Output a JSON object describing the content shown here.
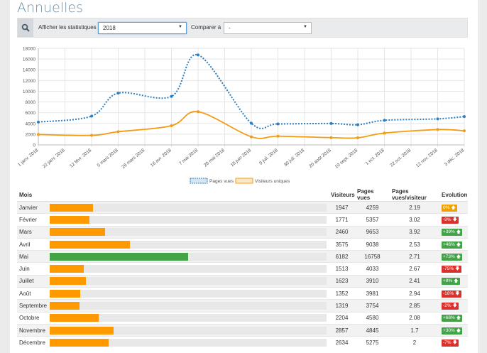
{
  "page": {
    "title": "Annuelles"
  },
  "filters": {
    "show_label": "Afficher les statistiques",
    "year_value": "2018",
    "compare_label": "Comparer à",
    "compare_value": "-",
    "search_icon": "search-icon"
  },
  "chart_data": {
    "type": "line",
    "x": [
      "1 janv. 2018",
      "22 janv. 2018",
      "12 févr. 2018",
      "5 mars 2018",
      "26 mars 2018",
      "16 avr. 2018",
      "7 mai 2018",
      "28 mai 2018",
      "18 juin 2018",
      "9 juil. 2018",
      "30 juil. 2018",
      "20 août 2018",
      "10 sept. 2018",
      "1 oct. 2018",
      "22 oct. 2018",
      "12 nov. 2018",
      "3 déc. 2018"
    ],
    "ylim": [
      0,
      18000
    ],
    "yticks": [
      "0",
      "2000",
      "4000",
      "6000",
      "8000",
      "10000",
      "12000",
      "14000",
      "16000",
      "18000"
    ],
    "series": [
      {
        "name": "Pages vues",
        "color": "#2f7ebd",
        "style": "dotted",
        "x": [
          "1 janv. 2018",
          "12 févr. 2018",
          "5 mars 2018",
          "16 avr. 2018",
          "7 mai 2018",
          "18 juin 2018",
          "9 juil. 2018",
          "20 août 2018",
          "10 sept. 2018",
          "1 oct. 2018",
          "12 nov. 2018",
          "3 déc. 2018"
        ],
        "values": [
          4259,
          5357,
          9653,
          9038,
          16758,
          4033,
          3910,
          3981,
          3754,
          4580,
          4845,
          5275
        ]
      },
      {
        "name": "Visiteurs uniques",
        "color": "#f39c12",
        "style": "solid",
        "x": [
          "1 janv. 2018",
          "12 févr. 2018",
          "5 mars 2018",
          "16 avr. 2018",
          "7 mai 2018",
          "18 juin 2018",
          "9 juil. 2018",
          "20 août 2018",
          "10 sept. 2018",
          "1 oct. 2018",
          "12 nov. 2018",
          "3 déc. 2018"
        ],
        "values": [
          1947,
          1771,
          2460,
          3575,
          6182,
          1513,
          1623,
          1352,
          1319,
          2204,
          2857,
          2634
        ]
      }
    ],
    "grid": true,
    "legend_position": "bottom"
  },
  "table": {
    "headers": {
      "month": "Mois",
      "visitors": "Visiteurs",
      "pages": "Pages vues",
      "ratio": "Pages vues/visiteur",
      "evolution": "Evolution"
    },
    "max_visitors": 6182,
    "rows": [
      {
        "month": "Janvier",
        "visitors": "1947",
        "pages": "4259",
        "ratio": "2.19",
        "evolution": "0%",
        "trend": "up",
        "color": "orange"
      },
      {
        "month": "Février",
        "visitors": "1771",
        "pages": "5357",
        "ratio": "3.02",
        "evolution": "-9%",
        "trend": "down",
        "color": "red"
      },
      {
        "month": "Mars",
        "visitors": "2460",
        "pages": "9653",
        "ratio": "3.92",
        "evolution": "+39%",
        "trend": "up",
        "color": "green"
      },
      {
        "month": "Avril",
        "visitors": "3575",
        "pages": "9038",
        "ratio": "2.53",
        "evolution": "+46%",
        "trend": "up",
        "color": "green"
      },
      {
        "month": "Mai",
        "visitors": "6182",
        "pages": "16758",
        "ratio": "2.71",
        "evolution": "+73%",
        "trend": "up",
        "color": "green"
      },
      {
        "month": "Juin",
        "visitors": "1513",
        "pages": "4033",
        "ratio": "2.67",
        "evolution": "-75%",
        "trend": "down",
        "color": "red"
      },
      {
        "month": "Juillet",
        "visitors": "1623",
        "pages": "3910",
        "ratio": "2.41",
        "evolution": "+8%",
        "trend": "up",
        "color": "green"
      },
      {
        "month": "Août",
        "visitors": "1352",
        "pages": "3981",
        "ratio": "2.94",
        "evolution": "-16%",
        "trend": "down",
        "color": "red"
      },
      {
        "month": "Septembre",
        "visitors": "1319",
        "pages": "3754",
        "ratio": "2.85",
        "evolution": "-2%",
        "trend": "down",
        "color": "red"
      },
      {
        "month": "Octobre",
        "visitors": "2204",
        "pages": "4580",
        "ratio": "2.08",
        "evolution": "+68%",
        "trend": "up",
        "color": "green"
      },
      {
        "month": "Novembre",
        "visitors": "2857",
        "pages": "4845",
        "ratio": "1.7",
        "evolution": "+30%",
        "trend": "up",
        "color": "green"
      },
      {
        "month": "Décembre",
        "visitors": "2634",
        "pages": "5275",
        "ratio": "2",
        "evolution": "-7%",
        "trend": "down",
        "color": "red"
      }
    ]
  }
}
